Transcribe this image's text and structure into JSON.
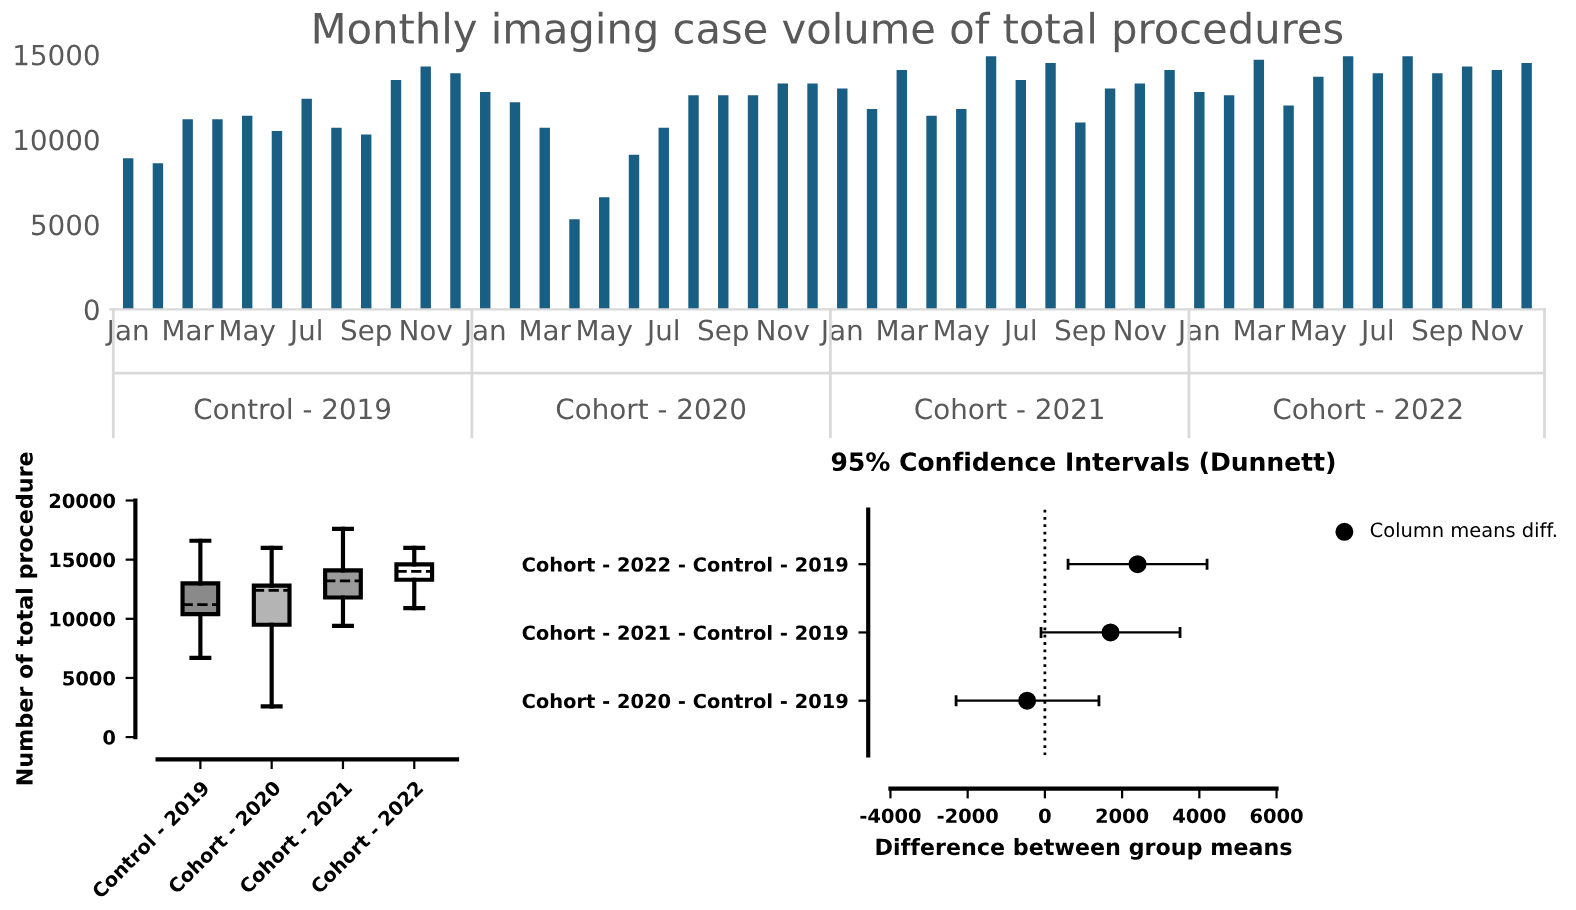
{
  "chart_data": [
    {
      "type": "bar",
      "title": "Monthly imaging case volume of total procedures",
      "categories": [
        "Jan",
        null,
        "Mar",
        null,
        "May",
        null,
        "Jul",
        null,
        "Sep",
        null,
        "Nov",
        null,
        "Jan",
        null,
        "Mar",
        null,
        "May",
        null,
        "Jul",
        null,
        "Sep",
        null,
        "Nov",
        null,
        "Jan",
        null,
        "Mar",
        null,
        "May",
        null,
        "Jul",
        null,
        "Sep",
        null,
        "Nov",
        null,
        "Jan",
        null,
        "Mar",
        null,
        "May",
        null,
        "Jul",
        null,
        "Sep",
        null,
        "Nov",
        null
      ],
      "values": [
        8900,
        8600,
        11200,
        11200,
        11400,
        10500,
        12400,
        10700,
        10300,
        13500,
        14300,
        13900,
        12800,
        12200,
        10700,
        5300,
        6600,
        9100,
        10700,
        12600,
        12600,
        12600,
        13300,
        13300,
        13000,
        11800,
        14100,
        11400,
        11800,
        14900,
        13500,
        14500,
        11000,
        13000,
        13300,
        14100,
        12800,
        12600,
        14700,
        12000,
        13700,
        14900,
        13900,
        14900,
        13900,
        14300,
        14100,
        14500
      ],
      "color": "#195e83",
      "ylim": [
        0,
        15000
      ],
      "yticks": [
        0,
        5000,
        10000,
        15000
      ],
      "grid": false,
      "annotations": [
        "Control - 2019",
        "Cohort - 2020",
        "Cohort - 2021",
        "Cohort - 2022"
      ]
    },
    {
      "type": "box",
      "ylabel": "Number of total procedure",
      "categories": [
        "Control - 2019",
        "Cohort - 2020",
        "Cohort - 2021",
        "Cohort - 2022"
      ],
      "boxes": [
        {
          "low": 6700,
          "q1": 10400,
          "median": 11200,
          "q3": 13000,
          "high": 16600
        },
        {
          "low": 2600,
          "q1": 9500,
          "median": 12400,
          "q3": 12800,
          "high": 16000
        },
        {
          "low": 9400,
          "q1": 11800,
          "median": 13200,
          "q3": 14100,
          "high": 17600
        },
        {
          "low": 10900,
          "q1": 13300,
          "median": 14000,
          "q3": 14600,
          "high": 16000
        }
      ],
      "colors": [
        "#8a8a8a",
        "#b4b4b4",
        "#9a9a9a",
        "#ffffff"
      ],
      "ylim": [
        0,
        20000
      ],
      "yticks": [
        0,
        5000,
        10000,
        15000,
        20000
      ],
      "grid": false
    },
    {
      "type": "scatter",
      "orientation": "horizontal",
      "title": "95% Confidence Intervals (Dunnett)",
      "xlabel": "Difference between group means",
      "categories": [
        "Cohort - 2022 - Control - 2019",
        "Cohort - 2021 - Control - 2019",
        "Cohort - 2020 - Control - 2019"
      ],
      "series": [
        {
          "name": "Column means diff.",
          "color": "#000000",
          "values": [
            2400,
            1700,
            -460
          ],
          "errors": [
            [
              600,
              4200
            ],
            [
              -100,
              3500
            ],
            [
              -2300,
              1400
            ]
          ]
        }
      ],
      "marker": "circle",
      "xlim": [
        -4000,
        6000
      ],
      "xticks": [
        -4000,
        -2000,
        0,
        2000,
        4000,
        6000
      ],
      "ref_lines": [
        {
          "axis": "x",
          "value": 0,
          "line_style": "dotted",
          "color": "#000000"
        }
      ],
      "legend": "top right",
      "grid": false
    }
  ]
}
